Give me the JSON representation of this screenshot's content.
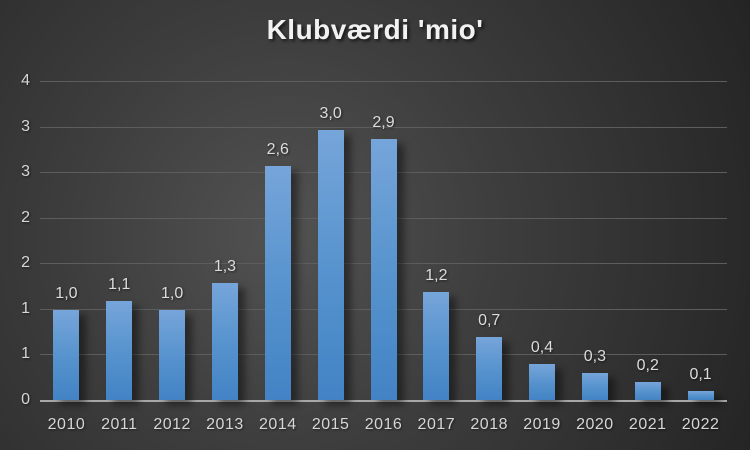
{
  "title": "Klubværdi 'mio'",
  "colors": {
    "background_center": "#525252",
    "background_edge": "#242424",
    "bar_gradient_top": "#76a5da",
    "bar_gradient_bottom": "#4383c5",
    "gridline": "#5d5d5d",
    "axis_line": "#a8a8a8",
    "tick_text": "#d6d6d6",
    "title_text": "#f2f2f2"
  },
  "chart_data": {
    "type": "bar",
    "title": "Klubværdi 'mio'",
    "categories": [
      "2010",
      "2011",
      "2012",
      "2013",
      "2014",
      "2015",
      "2016",
      "2017",
      "2018",
      "2019",
      "2020",
      "2021",
      "2022"
    ],
    "values": [
      1.0,
      1.1,
      1.0,
      1.3,
      2.6,
      3.0,
      2.9,
      1.2,
      0.7,
      0.4,
      0.3,
      0.2,
      0.1
    ],
    "data_labels": [
      "1,0",
      "1,1",
      "1,0",
      "1,3",
      "2,6",
      "3,0",
      "2,9",
      "1,2",
      "0,7",
      "0,4",
      "0,3",
      "0,2",
      "0,1"
    ],
    "xlabel": "",
    "ylabel": "",
    "ylim": [
      0,
      3.5
    ],
    "ytick_values": [
      3.5,
      3.0,
      2.5,
      2.0,
      1.5,
      1.0,
      0.5,
      0
    ],
    "ytick_labels_top_to_bottom": [
      "4",
      "3",
      "3",
      "2",
      "2",
      "1",
      "1",
      "0"
    ],
    "grid": true,
    "legend": false,
    "data_label_decimal_separator": ","
  }
}
